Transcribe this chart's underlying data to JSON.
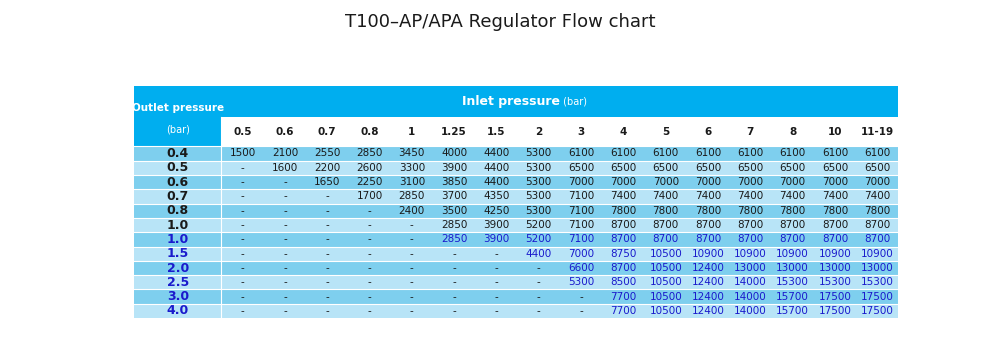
{
  "title": "T100–AP/APA Regulator Flow chart",
  "title_fontsize": 13,
  "col_header_main_bold": "Inlet pressure",
  "col_header_main_small": " (bar)",
  "col_header_sub": [
    "0.5",
    "0.6",
    "0.7",
    "0.8",
    "1",
    "1.25",
    "1.5",
    "2",
    "3",
    "4",
    "5",
    "6",
    "7",
    "8",
    "10",
    "11-19"
  ],
  "row_header_line1": "Outlet pressure",
  "row_header_line2": "(bar)",
  "row_labels": [
    "0.4",
    "0.5",
    "0.6",
    "0.7",
    "0.8",
    "1.0",
    "1.0",
    "1.5",
    "2.0",
    "2.5",
    "3.0",
    "4.0"
  ],
  "row_label_blue": [
    false,
    false,
    false,
    false,
    false,
    false,
    true,
    true,
    true,
    true,
    true,
    true
  ],
  "data": [
    [
      "1500",
      "2100",
      "2550",
      "2850",
      "3450",
      "4000",
      "4400",
      "5300",
      "6100",
      "6100",
      "6100",
      "6100",
      "6100",
      "6100",
      "6100",
      "6100"
    ],
    [
      "-",
      "1600",
      "2200",
      "2600",
      "3300",
      "3900",
      "4400",
      "5300",
      "6500",
      "6500",
      "6500",
      "6500",
      "6500",
      "6500",
      "6500",
      "6500"
    ],
    [
      "-",
      "-",
      "1650",
      "2250",
      "3100",
      "3850",
      "4400",
      "5300",
      "7000",
      "7000",
      "7000",
      "7000",
      "7000",
      "7000",
      "7000",
      "7000"
    ],
    [
      "-",
      "-",
      "-",
      "1700",
      "2850",
      "3700",
      "4350",
      "5300",
      "7100",
      "7400",
      "7400",
      "7400",
      "7400",
      "7400",
      "7400",
      "7400"
    ],
    [
      "-",
      "-",
      "-",
      "-",
      "2400",
      "3500",
      "4250",
      "5300",
      "7100",
      "7800",
      "7800",
      "7800",
      "7800",
      "7800",
      "7800",
      "7800"
    ],
    [
      "-",
      "-",
      "-",
      "-",
      "-",
      "2850",
      "3900",
      "5200",
      "7100",
      "8700",
      "8700",
      "8700",
      "8700",
      "8700",
      "8700",
      "8700"
    ],
    [
      "-",
      "-",
      "-",
      "-",
      "-",
      "2850",
      "3900",
      "5200",
      "7100",
      "8700",
      "8700",
      "8700",
      "8700",
      "8700",
      "8700",
      "8700"
    ],
    [
      "-",
      "-",
      "-",
      "-",
      "-",
      "-",
      "-",
      "4400",
      "7000",
      "8750",
      "10500",
      "10900",
      "10900",
      "10900",
      "10900",
      "10900"
    ],
    [
      "-",
      "-",
      "-",
      "-",
      "-",
      "-",
      "-",
      "-",
      "6600",
      "8700",
      "10500",
      "12400",
      "13000",
      "13000",
      "13000",
      "13000"
    ],
    [
      "-",
      "-",
      "-",
      "-",
      "-",
      "-",
      "-",
      "-",
      "5300",
      "8500",
      "10500",
      "12400",
      "14000",
      "15300",
      "15300",
      "15300"
    ],
    [
      "-",
      "-",
      "-",
      "-",
      "-",
      "-",
      "-",
      "-",
      "-",
      "7700",
      "10500",
      "12400",
      "14000",
      "15700",
      "17500",
      "17500"
    ],
    [
      "-",
      "-",
      "-",
      "-",
      "-",
      "-",
      "-",
      "-",
      "-",
      "7700",
      "10500",
      "12400",
      "14000",
      "15700",
      "17500",
      "17500"
    ]
  ],
  "data_blue": [
    [
      false,
      false,
      false,
      false,
      false,
      false,
      false,
      false,
      false,
      false,
      false,
      false,
      false,
      false,
      false,
      false
    ],
    [
      false,
      false,
      false,
      false,
      false,
      false,
      false,
      false,
      false,
      false,
      false,
      false,
      false,
      false,
      false,
      false
    ],
    [
      false,
      false,
      false,
      false,
      false,
      false,
      false,
      false,
      false,
      false,
      false,
      false,
      false,
      false,
      false,
      false
    ],
    [
      false,
      false,
      false,
      false,
      false,
      false,
      false,
      false,
      false,
      false,
      false,
      false,
      false,
      false,
      false,
      false
    ],
    [
      false,
      false,
      false,
      false,
      false,
      false,
      false,
      false,
      false,
      false,
      false,
      false,
      false,
      false,
      false,
      false
    ],
    [
      false,
      false,
      false,
      false,
      false,
      false,
      false,
      false,
      false,
      false,
      false,
      false,
      false,
      false,
      false,
      false
    ],
    [
      false,
      false,
      false,
      false,
      false,
      true,
      true,
      true,
      true,
      true,
      true,
      true,
      true,
      true,
      true,
      true
    ],
    [
      false,
      false,
      false,
      false,
      false,
      false,
      false,
      true,
      true,
      true,
      true,
      true,
      true,
      true,
      true,
      true
    ],
    [
      false,
      false,
      false,
      false,
      false,
      false,
      false,
      false,
      true,
      true,
      true,
      true,
      true,
      true,
      true,
      true
    ],
    [
      false,
      false,
      false,
      false,
      false,
      false,
      false,
      false,
      true,
      true,
      true,
      true,
      true,
      true,
      true,
      true
    ],
    [
      false,
      false,
      false,
      false,
      false,
      false,
      false,
      false,
      false,
      true,
      true,
      true,
      true,
      true,
      true,
      true
    ],
    [
      false,
      false,
      false,
      false,
      false,
      false,
      false,
      false,
      false,
      true,
      true,
      true,
      true,
      true,
      true,
      true
    ]
  ],
  "color_header_dark": "#00AEEF",
  "color_row_even": "#7ECFEE",
  "color_row_odd": "#B8E4F7",
  "color_white": "#ffffff",
  "color_text_black": "#1a1a1a",
  "color_text_blue": "#1a1aCC",
  "color_text_white": "#ffffff"
}
